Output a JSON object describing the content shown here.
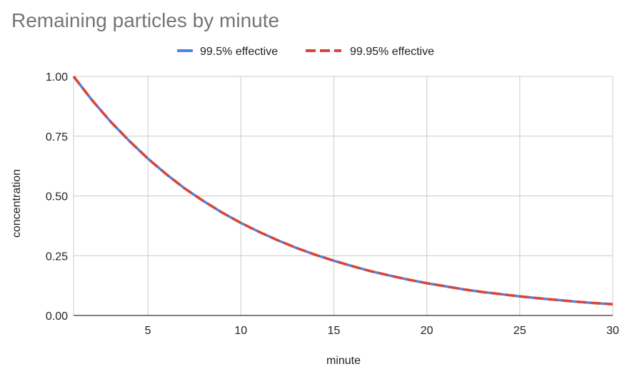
{
  "chart_data": {
    "type": "line",
    "title": "Remaining particles by minute",
    "xlabel": "minute",
    "ylabel": "concentration",
    "xlim": [
      1,
      30
    ],
    "ylim": [
      0,
      1
    ],
    "x_ticks": [
      "5",
      "10",
      "15",
      "20",
      "25",
      "30"
    ],
    "y_ticks": [
      "0.00",
      "0.25",
      "0.50",
      "0.75",
      "1.00"
    ],
    "grid": true,
    "legend_position": "top-center",
    "x": [
      1,
      2,
      3,
      4,
      5,
      6,
      7,
      8,
      9,
      10,
      11,
      12,
      13,
      14,
      15,
      16,
      17,
      18,
      19,
      20,
      21,
      22,
      23,
      24,
      25,
      26,
      27,
      28,
      29,
      30
    ],
    "series": [
      {
        "name": "99.5% effective",
        "color": "#4a86e8",
        "dash": "solid",
        "values": [
          1.0,
          0.9,
          0.81,
          0.73,
          0.656,
          0.59,
          0.53,
          0.478,
          0.43,
          0.387,
          0.349,
          0.314,
          0.282,
          0.254,
          0.229,
          0.206,
          0.185,
          0.167,
          0.15,
          0.135,
          0.122,
          0.109,
          0.098,
          0.089,
          0.08,
          0.072,
          0.065,
          0.058,
          0.052,
          0.047
        ]
      },
      {
        "name": "99.95% effective",
        "color": "#db4437",
        "dash": "dashed",
        "values": [
          1.0,
          0.9,
          0.81,
          0.73,
          0.656,
          0.59,
          0.53,
          0.478,
          0.43,
          0.387,
          0.349,
          0.314,
          0.282,
          0.254,
          0.229,
          0.206,
          0.185,
          0.167,
          0.15,
          0.135,
          0.122,
          0.109,
          0.098,
          0.089,
          0.08,
          0.072,
          0.065,
          0.058,
          0.052,
          0.047
        ]
      }
    ]
  }
}
